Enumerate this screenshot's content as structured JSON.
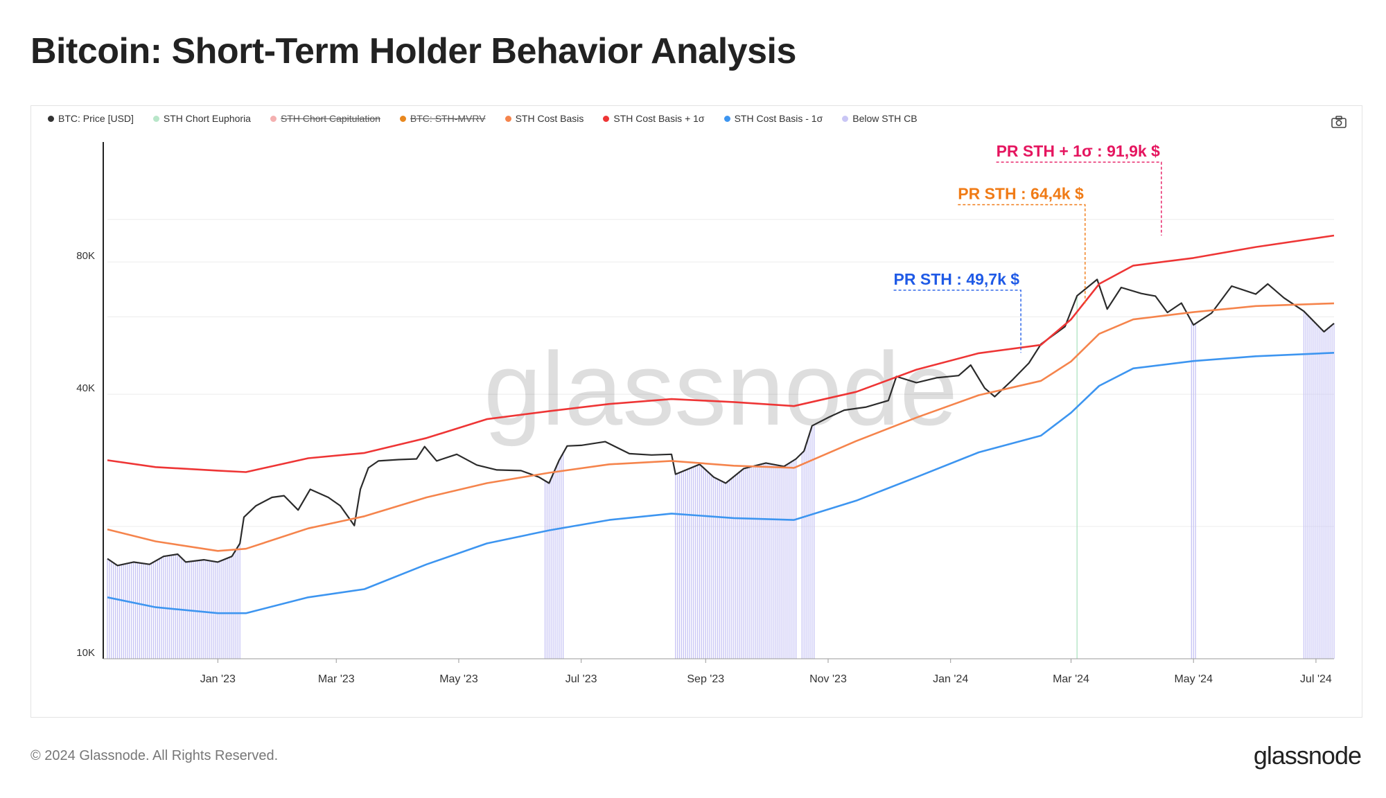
{
  "title": "Bitcoin: Short-Term Holder Behavior Analysis",
  "footer": {
    "copyright": "© 2024 Glassnode. All Rights Reserved.",
    "logo": "glassnode"
  },
  "watermark": "glassnode",
  "legend": [
    {
      "label": "BTC: Price [USD]",
      "color": "#333333",
      "off": false
    },
    {
      "label": "STH Chort Euphoria",
      "color": "#b8e6c9",
      "off": false
    },
    {
      "label": "STH Chort Capitulation",
      "color": "#f4b0b0",
      "off": true
    },
    {
      "label": "BTC: STH-MVRV",
      "color": "#e8871e",
      "off": true
    },
    {
      "label": "STH Cost Basis",
      "color": "#f5844c",
      "off": false
    },
    {
      "label": "STH Cost Basis + 1σ",
      "color": "#ee3535",
      "off": false
    },
    {
      "label": "STH Cost Basis - 1σ",
      "color": "#3d95f0",
      "off": false
    },
    {
      "label": "Below STH CB",
      "color": "#c9c6f5",
      "off": false
    }
  ],
  "icons": {
    "camera": "camera-icon"
  },
  "chart_data": {
    "type": "line",
    "yscale": "log",
    "ylim": [
      10000,
      150000
    ],
    "yticks": [
      {
        "v": 10000,
        "label": "10K"
      },
      {
        "v": 40000,
        "label": "40K"
      },
      {
        "v": 80000,
        "label": "80K"
      }
    ],
    "xlim": [
      "2022-11-07",
      "2024-07-10"
    ],
    "xticks": [
      {
        "d": "2023-01-01",
        "label": "Jan '23"
      },
      {
        "d": "2023-03-01",
        "label": "Mar '23"
      },
      {
        "d": "2023-05-01",
        "label": "May '23"
      },
      {
        "d": "2023-07-01",
        "label": "Jul '23"
      },
      {
        "d": "2023-09-01",
        "label": "Sep '23"
      },
      {
        "d": "2023-11-01",
        "label": "Nov '23"
      },
      {
        "d": "2024-01-01",
        "label": "Jan '24"
      },
      {
        "d": "2024-03-01",
        "label": "Mar '24"
      },
      {
        "d": "2024-05-01",
        "label": "May '24"
      },
      {
        "d": "2024-07-01",
        "label": "Jul '24"
      }
    ],
    "series": [
      {
        "name": "BTC: Price [USD]",
        "color": "#2b2b2b",
        "width": 2.2,
        "points": [
          [
            "2022-11-07",
            16900
          ],
          [
            "2022-11-12",
            16300
          ],
          [
            "2022-11-20",
            16600
          ],
          [
            "2022-11-28",
            16400
          ],
          [
            "2022-12-05",
            17100
          ],
          [
            "2022-12-12",
            17300
          ],
          [
            "2022-12-16",
            16600
          ],
          [
            "2022-12-25",
            16800
          ],
          [
            "2023-01-01",
            16600
          ],
          [
            "2023-01-08",
            17100
          ],
          [
            "2023-01-12",
            18300
          ],
          [
            "2023-01-14",
            21000
          ],
          [
            "2023-01-20",
            22300
          ],
          [
            "2023-01-28",
            23300
          ],
          [
            "2023-02-03",
            23500
          ],
          [
            "2023-02-10",
            21800
          ],
          [
            "2023-02-16",
            24300
          ],
          [
            "2023-02-25",
            23300
          ],
          [
            "2023-03-03",
            22300
          ],
          [
            "2023-03-10",
            20100
          ],
          [
            "2023-03-13",
            24300
          ],
          [
            "2023-03-17",
            27200
          ],
          [
            "2023-03-22",
            28200
          ],
          [
            "2023-04-01",
            28400
          ],
          [
            "2023-04-10",
            28500
          ],
          [
            "2023-04-14",
            30400
          ],
          [
            "2023-04-20",
            28200
          ],
          [
            "2023-04-30",
            29200
          ],
          [
            "2023-05-10",
            27600
          ],
          [
            "2023-05-20",
            26900
          ],
          [
            "2023-06-01",
            26800
          ],
          [
            "2023-06-10",
            25900
          ],
          [
            "2023-06-15",
            25100
          ],
          [
            "2023-06-20",
            28300
          ],
          [
            "2023-06-24",
            30500
          ],
          [
            "2023-07-01",
            30600
          ],
          [
            "2023-07-13",
            31200
          ],
          [
            "2023-07-25",
            29300
          ],
          [
            "2023-08-05",
            29100
          ],
          [
            "2023-08-15",
            29200
          ],
          [
            "2023-08-17",
            26300
          ],
          [
            "2023-08-29",
            27700
          ],
          [
            "2023-09-05",
            25900
          ],
          [
            "2023-09-11",
            25100
          ],
          [
            "2023-09-20",
            27100
          ],
          [
            "2023-10-01",
            27900
          ],
          [
            "2023-10-10",
            27400
          ],
          [
            "2023-10-16",
            28500
          ],
          [
            "2023-10-20",
            29700
          ],
          [
            "2023-10-24",
            33900
          ],
          [
            "2023-11-01",
            35400
          ],
          [
            "2023-11-09",
            36800
          ],
          [
            "2023-11-20",
            37400
          ],
          [
            "2023-12-01",
            38700
          ],
          [
            "2023-12-05",
            43900
          ],
          [
            "2023-12-15",
            42500
          ],
          [
            "2023-12-25",
            43600
          ],
          [
            "2024-01-05",
            44100
          ],
          [
            "2024-01-11",
            46600
          ],
          [
            "2024-01-18",
            41300
          ],
          [
            "2024-01-23",
            39500
          ],
          [
            "2024-02-01",
            43200
          ],
          [
            "2024-02-09",
            47100
          ],
          [
            "2024-02-15",
            52000
          ],
          [
            "2024-02-27",
            57000
          ],
          [
            "2024-03-04",
            67000
          ],
          [
            "2024-03-14",
            73000
          ],
          [
            "2024-03-19",
            62500
          ],
          [
            "2024-03-26",
            70000
          ],
          [
            "2024-04-05",
            67800
          ],
          [
            "2024-04-12",
            66900
          ],
          [
            "2024-04-18",
            61400
          ],
          [
            "2024-04-25",
            64500
          ],
          [
            "2024-05-01",
            57500
          ],
          [
            "2024-05-10",
            61200
          ],
          [
            "2024-05-20",
            70500
          ],
          [
            "2024-06-01",
            67600
          ],
          [
            "2024-06-07",
            71300
          ],
          [
            "2024-06-15",
            66300
          ],
          [
            "2024-06-25",
            61800
          ],
          [
            "2024-07-05",
            55500
          ],
          [
            "2024-07-10",
            58000
          ]
        ]
      },
      {
        "name": "STH Cost Basis",
        "color": "#f5844c",
        "width": 2.6,
        "points": [
          [
            "2022-11-07",
            19700
          ],
          [
            "2022-12-01",
            18500
          ],
          [
            "2023-01-01",
            17600
          ],
          [
            "2023-01-15",
            17800
          ],
          [
            "2023-02-15",
            19800
          ],
          [
            "2023-03-15",
            21100
          ],
          [
            "2023-04-15",
            23300
          ],
          [
            "2023-05-15",
            25100
          ],
          [
            "2023-06-15",
            26500
          ],
          [
            "2023-07-15",
            27700
          ],
          [
            "2023-08-15",
            28200
          ],
          [
            "2023-09-15",
            27500
          ],
          [
            "2023-10-15",
            27200
          ],
          [
            "2023-11-15",
            31300
          ],
          [
            "2023-12-15",
            35400
          ],
          [
            "2024-01-15",
            39800
          ],
          [
            "2024-02-15",
            42900
          ],
          [
            "2024-03-01",
            47500
          ],
          [
            "2024-03-15",
            54900
          ],
          [
            "2024-04-01",
            59200
          ],
          [
            "2024-05-01",
            61500
          ],
          [
            "2024-06-01",
            63500
          ],
          [
            "2024-07-10",
            64400
          ]
        ]
      },
      {
        "name": "STH Cost Basis + 1σ",
        "color": "#ee3535",
        "width": 2.6,
        "points": [
          [
            "2022-11-07",
            28300
          ],
          [
            "2022-12-01",
            27300
          ],
          [
            "2023-01-01",
            26800
          ],
          [
            "2023-01-15",
            26600
          ],
          [
            "2023-02-15",
            28600
          ],
          [
            "2023-03-15",
            29400
          ],
          [
            "2023-04-15",
            31800
          ],
          [
            "2023-05-15",
            35100
          ],
          [
            "2023-06-15",
            36600
          ],
          [
            "2023-07-15",
            38000
          ],
          [
            "2023-08-15",
            39000
          ],
          [
            "2023-09-15",
            38400
          ],
          [
            "2023-10-15",
            37600
          ],
          [
            "2023-11-15",
            40500
          ],
          [
            "2023-12-15",
            45500
          ],
          [
            "2024-01-15",
            49600
          ],
          [
            "2024-02-15",
            51800
          ],
          [
            "2024-03-01",
            59200
          ],
          [
            "2024-03-15",
            71300
          ],
          [
            "2024-04-01",
            78500
          ],
          [
            "2024-05-01",
            81700
          ],
          [
            "2024-06-01",
            86500
          ],
          [
            "2024-07-10",
            91900
          ]
        ]
      },
      {
        "name": "STH Cost Basis - 1σ",
        "color": "#3d95f0",
        "width": 2.6,
        "points": [
          [
            "2022-11-07",
            13800
          ],
          [
            "2022-12-01",
            13100
          ],
          [
            "2023-01-01",
            12700
          ],
          [
            "2023-01-15",
            12700
          ],
          [
            "2023-02-15",
            13800
          ],
          [
            "2023-03-15",
            14400
          ],
          [
            "2023-04-15",
            16400
          ],
          [
            "2023-05-15",
            18300
          ],
          [
            "2023-06-15",
            19600
          ],
          [
            "2023-07-15",
            20700
          ],
          [
            "2023-08-15",
            21400
          ],
          [
            "2023-09-15",
            20900
          ],
          [
            "2023-10-15",
            20700
          ],
          [
            "2023-11-15",
            22900
          ],
          [
            "2023-12-15",
            25900
          ],
          [
            "2024-01-15",
            29500
          ],
          [
            "2024-02-15",
            32200
          ],
          [
            "2024-03-01",
            36300
          ],
          [
            "2024-03-15",
            41800
          ],
          [
            "2024-04-01",
            45800
          ],
          [
            "2024-05-01",
            47600
          ],
          [
            "2024-06-01",
            48800
          ],
          [
            "2024-07-10",
            49700
          ]
        ]
      }
    ],
    "below_cb_ranges": [
      [
        "2022-11-07",
        "2023-01-12"
      ],
      [
        "2023-06-13",
        "2023-06-22"
      ],
      [
        "2023-08-17",
        "2023-10-16"
      ],
      [
        "2023-10-19",
        "2023-10-25"
      ],
      [
        "2024-04-30",
        "2024-05-02"
      ],
      [
        "2024-06-25",
        "2024-07-10"
      ]
    ],
    "euphoria_marks": [
      "2024-03-04"
    ],
    "annotations": [
      {
        "text": "PR STH : 49,7k $",
        "color": "#1f5ae6",
        "value": 49700,
        "anchor_date": "2024-02-05",
        "label_y": 69000
      },
      {
        "text": "PR STH : 64,4k $",
        "color": "#f07b16",
        "value": 64400,
        "anchor_date": "2024-03-08",
        "label_y": 108000
      },
      {
        "text": "PR STH + 1σ : 91,9k $",
        "color": "#e5155f",
        "value": 91900,
        "anchor_date": "2024-04-15",
        "label_y": 135000
      }
    ]
  }
}
